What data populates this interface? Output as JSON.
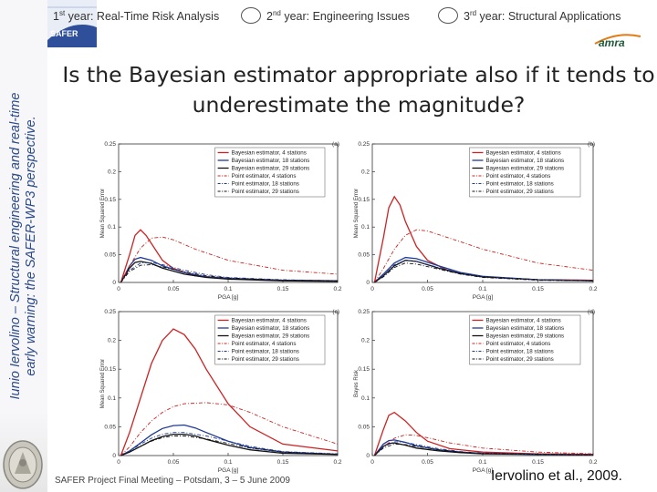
{
  "sidebar": {
    "line1": "Iunio Iervolino – Structural engineering and real-time",
    "line2": "early warning: the SAFER-WP3 perspective."
  },
  "logos": {
    "safer": "SAFER",
    "amra": "amra"
  },
  "nav": {
    "item1_num": "1",
    "item1_sup": "st",
    "item1_text": " year: Real-Time Risk Analysis",
    "item2_num": "2",
    "item2_sup": "nd",
    "item2_text": " year: Engineering Issues",
    "item3_num": "3",
    "item3_sup": "rd",
    "item3_text": " year: Structural Applications"
  },
  "title": "Is the Bayesian estimator appropriate also if it tends to underestimate the magnitude?",
  "footer": {
    "meeting": "SAFER Project Final Meeting – Potsdam, 3 – 5 June 2009",
    "citation": "Iervolino et al., 2009."
  },
  "colors": {
    "s4": "#cc2222",
    "s18": "#1f3a93",
    "s29": "#111111",
    "sidebar_text": "#2b4a8a"
  },
  "chart_data": [
    {
      "type": "line",
      "panel": "(a)",
      "xlabel": "PGA [g]",
      "ylabel": "Mean Squared Error",
      "xlim": [
        0,
        0.2
      ],
      "ylim": [
        0,
        0.25
      ],
      "xticks": [
        "0",
        "0.05",
        "0.1",
        "0.15",
        "0.2"
      ],
      "yticks": [
        "0",
        "0.05",
        "0.1",
        "0.15",
        "0.2",
        "0.25"
      ],
      "legend": "top-right",
      "series": [
        {
          "name": "Bayesian estimator, 4 stations",
          "style": "solid",
          "color": "#cc2222",
          "x": [
            0.002,
            0.01,
            0.015,
            0.02,
            0.025,
            0.03,
            0.04,
            0.05,
            0.07,
            0.1,
            0.15,
            0.2
          ],
          "y": [
            0.0,
            0.05,
            0.085,
            0.095,
            0.085,
            0.07,
            0.04,
            0.025,
            0.012,
            0.007,
            0.004,
            0.003
          ]
        },
        {
          "name": "Bayesian estimator, 18 stations",
          "style": "solid",
          "color": "#1f3a93",
          "x": [
            0.002,
            0.01,
            0.015,
            0.02,
            0.03,
            0.04,
            0.06,
            0.08,
            0.1,
            0.15,
            0.2
          ],
          "y": [
            0.0,
            0.03,
            0.042,
            0.045,
            0.04,
            0.03,
            0.018,
            0.01,
            0.007,
            0.004,
            0.003
          ]
        },
        {
          "name": "Bayesian estimator, 29 stations",
          "style": "solid",
          "color": "#111111",
          "x": [
            0.002,
            0.01,
            0.015,
            0.02,
            0.03,
            0.04,
            0.06,
            0.08,
            0.1,
            0.15,
            0.2
          ],
          "y": [
            0.0,
            0.026,
            0.036,
            0.038,
            0.034,
            0.026,
            0.015,
            0.009,
            0.006,
            0.003,
            0.002
          ]
        },
        {
          "name": "Point estimator, 4 stations",
          "style": "dashdot",
          "color": "#cc2222",
          "x": [
            0.002,
            0.01,
            0.02,
            0.03,
            0.04,
            0.05,
            0.07,
            0.1,
            0.15,
            0.2
          ],
          "y": [
            0.0,
            0.03,
            0.062,
            0.08,
            0.082,
            0.077,
            0.06,
            0.04,
            0.022,
            0.015
          ]
        },
        {
          "name": "Point estimator, 18 stations",
          "style": "dashdot",
          "color": "#1f3a93",
          "x": [
            0.002,
            0.01,
            0.02,
            0.03,
            0.04,
            0.06,
            0.08,
            0.1,
            0.15,
            0.2
          ],
          "y": [
            0.0,
            0.022,
            0.035,
            0.036,
            0.032,
            0.022,
            0.014,
            0.009,
            0.005,
            0.003
          ]
        },
        {
          "name": "Point estimator, 29 stations",
          "style": "dashdot",
          "color": "#111111",
          "x": [
            0.002,
            0.01,
            0.02,
            0.03,
            0.04,
            0.06,
            0.08,
            0.1,
            0.15,
            0.2
          ],
          "y": [
            0.0,
            0.02,
            0.031,
            0.032,
            0.028,
            0.019,
            0.012,
            0.008,
            0.004,
            0.003
          ]
        }
      ]
    },
    {
      "type": "line",
      "panel": "(b)",
      "xlabel": "PGA [g]",
      "ylabel": "Mean Squared Error",
      "xlim": [
        0,
        0.2
      ],
      "ylim": [
        0,
        0.25
      ],
      "xticks": [
        "0",
        "0.05",
        "0.1",
        "0.15",
        "0.2"
      ],
      "yticks": [
        "0",
        "0.05",
        "0.1",
        "0.15",
        "0.2",
        "0.25"
      ],
      "legend": "top-right",
      "series": [
        {
          "name": "Bayesian estimator, 4 stations",
          "style": "solid",
          "color": "#cc2222",
          "x": [
            0.002,
            0.01,
            0.015,
            0.02,
            0.025,
            0.03,
            0.04,
            0.05,
            0.07,
            0.1,
            0.15,
            0.2
          ],
          "y": [
            0.0,
            0.08,
            0.135,
            0.155,
            0.14,
            0.11,
            0.065,
            0.04,
            0.02,
            0.01,
            0.005,
            0.004
          ]
        },
        {
          "name": "Bayesian estimator, 18 stations",
          "style": "solid",
          "color": "#1f3a93",
          "x": [
            0.002,
            0.01,
            0.02,
            0.03,
            0.04,
            0.06,
            0.08,
            0.1,
            0.15,
            0.2
          ],
          "y": [
            0.0,
            0.015,
            0.035,
            0.045,
            0.043,
            0.03,
            0.018,
            0.011,
            0.005,
            0.003
          ]
        },
        {
          "name": "Bayesian estimator, 29 stations",
          "style": "solid",
          "color": "#111111",
          "x": [
            0.002,
            0.01,
            0.02,
            0.03,
            0.04,
            0.06,
            0.08,
            0.1,
            0.15,
            0.2
          ],
          "y": [
            0.0,
            0.012,
            0.03,
            0.04,
            0.038,
            0.026,
            0.016,
            0.01,
            0.005,
            0.003
          ]
        },
        {
          "name": "Point estimator, 4 stations",
          "style": "dashdot",
          "color": "#cc2222",
          "x": [
            0.002,
            0.01,
            0.02,
            0.03,
            0.04,
            0.05,
            0.07,
            0.1,
            0.15,
            0.2
          ],
          "y": [
            0.0,
            0.025,
            0.06,
            0.085,
            0.095,
            0.093,
            0.08,
            0.06,
            0.035,
            0.022
          ]
        },
        {
          "name": "Point estimator, 18 stations",
          "style": "dashdot",
          "color": "#1f3a93",
          "x": [
            0.002,
            0.01,
            0.02,
            0.03,
            0.04,
            0.06,
            0.08,
            0.1,
            0.15,
            0.2
          ],
          "y": [
            0.0,
            0.012,
            0.032,
            0.04,
            0.038,
            0.027,
            0.017,
            0.011,
            0.005,
            0.003
          ]
        },
        {
          "name": "Point estimator, 29 stations",
          "style": "dashdot",
          "color": "#111111",
          "x": [
            0.002,
            0.01,
            0.02,
            0.03,
            0.04,
            0.06,
            0.08,
            0.1,
            0.15,
            0.2
          ],
          "y": [
            0.0,
            0.01,
            0.027,
            0.035,
            0.033,
            0.024,
            0.015,
            0.009,
            0.004,
            0.003
          ]
        }
      ]
    },
    {
      "type": "line",
      "panel": "(c)",
      "xlabel": "PGA [g]",
      "ylabel": "Mean Squared Error",
      "xlim": [
        0,
        0.2
      ],
      "ylim": [
        0,
        0.25
      ],
      "xticks": [
        "0",
        "0.05",
        "0.1",
        "0.15",
        "0.2"
      ],
      "yticks": [
        "0",
        "0.05",
        "0.1",
        "0.15",
        "0.2",
        "0.25"
      ],
      "legend": "top-right",
      "series": [
        {
          "name": "Bayesian estimator, 4 stations",
          "style": "solid",
          "color": "#cc2222",
          "x": [
            0.002,
            0.01,
            0.02,
            0.03,
            0.04,
            0.05,
            0.06,
            0.07,
            0.08,
            0.1,
            0.12,
            0.15,
            0.2
          ],
          "y": [
            0.0,
            0.04,
            0.1,
            0.16,
            0.2,
            0.22,
            0.21,
            0.185,
            0.15,
            0.09,
            0.05,
            0.02,
            0.008
          ]
        },
        {
          "name": "Bayesian estimator, 18 stations",
          "style": "solid",
          "color": "#1f3a93",
          "x": [
            0.002,
            0.01,
            0.02,
            0.03,
            0.04,
            0.05,
            0.06,
            0.07,
            0.08,
            0.1,
            0.12,
            0.15,
            0.2
          ],
          "y": [
            0.0,
            0.008,
            0.022,
            0.036,
            0.047,
            0.052,
            0.053,
            0.048,
            0.04,
            0.025,
            0.014,
            0.006,
            0.002
          ]
        },
        {
          "name": "Bayesian estimator, 29 stations",
          "style": "solid",
          "color": "#111111",
          "x": [
            0.002,
            0.01,
            0.02,
            0.03,
            0.04,
            0.05,
            0.06,
            0.07,
            0.08,
            0.1,
            0.12,
            0.15,
            0.2
          ],
          "y": [
            0.0,
            0.006,
            0.016,
            0.026,
            0.033,
            0.037,
            0.037,
            0.034,
            0.028,
            0.018,
            0.01,
            0.004,
            0.002
          ]
        },
        {
          "name": "Point estimator, 4 stations",
          "style": "dashdot",
          "color": "#cc2222",
          "x": [
            0.002,
            0.01,
            0.02,
            0.03,
            0.04,
            0.05,
            0.06,
            0.08,
            0.1,
            0.12,
            0.15,
            0.2
          ],
          "y": [
            0.0,
            0.015,
            0.04,
            0.06,
            0.075,
            0.085,
            0.09,
            0.092,
            0.088,
            0.075,
            0.05,
            0.02
          ]
        },
        {
          "name": "Point estimator, 18 stations",
          "style": "dashdot",
          "color": "#1f3a93",
          "x": [
            0.002,
            0.01,
            0.02,
            0.03,
            0.04,
            0.05,
            0.06,
            0.08,
            0.1,
            0.12,
            0.15,
            0.2
          ],
          "y": [
            0.0,
            0.007,
            0.02,
            0.03,
            0.037,
            0.04,
            0.04,
            0.034,
            0.025,
            0.016,
            0.007,
            0.003
          ]
        },
        {
          "name": "Point estimator, 29 stations",
          "style": "dashdot",
          "color": "#111111",
          "x": [
            0.002,
            0.01,
            0.02,
            0.03,
            0.04,
            0.05,
            0.06,
            0.08,
            0.1,
            0.12,
            0.15,
            0.2
          ],
          "y": [
            0.0,
            0.006,
            0.016,
            0.025,
            0.031,
            0.034,
            0.034,
            0.029,
            0.021,
            0.013,
            0.006,
            0.002
          ]
        }
      ]
    },
    {
      "type": "line",
      "panel": "(d)",
      "xlabel": "PGA [g]",
      "ylabel": "Bayes Risk",
      "xlim": [
        0,
        0.2
      ],
      "ylim": [
        0,
        0.25
      ],
      "xticks": [
        "0",
        "0.05",
        "0.1",
        "0.15",
        "0.2"
      ],
      "yticks": [
        "0",
        "0.05",
        "0.1",
        "0.15",
        "0.2",
        "0.25"
      ],
      "legend": "top-right",
      "series": [
        {
          "name": "Bayesian estimator, 4 stations",
          "style": "solid",
          "color": "#cc2222",
          "x": [
            0.002,
            0.01,
            0.015,
            0.02,
            0.03,
            0.04,
            0.05,
            0.07,
            0.1,
            0.15,
            0.2
          ],
          "y": [
            0.0,
            0.045,
            0.07,
            0.075,
            0.06,
            0.04,
            0.025,
            0.012,
            0.006,
            0.003,
            0.002
          ]
        },
        {
          "name": "Bayesian estimator, 18 stations",
          "style": "solid",
          "color": "#1f3a93",
          "x": [
            0.002,
            0.01,
            0.015,
            0.02,
            0.03,
            0.04,
            0.06,
            0.08,
            0.1,
            0.15,
            0.2
          ],
          "y": [
            0.0,
            0.02,
            0.026,
            0.027,
            0.023,
            0.017,
            0.01,
            0.006,
            0.004,
            0.002,
            0.001
          ]
        },
        {
          "name": "Bayesian estimator, 29 stations",
          "style": "solid",
          "color": "#111111",
          "x": [
            0.002,
            0.01,
            0.015,
            0.02,
            0.03,
            0.04,
            0.06,
            0.08,
            0.1,
            0.15,
            0.2
          ],
          "y": [
            0.0,
            0.016,
            0.021,
            0.022,
            0.018,
            0.013,
            0.008,
            0.005,
            0.003,
            0.002,
            0.001
          ]
        },
        {
          "name": "Point estimator, 4 stations",
          "style": "dashdot",
          "color": "#cc2222",
          "x": [
            0.002,
            0.01,
            0.02,
            0.03,
            0.04,
            0.05,
            0.07,
            0.1,
            0.15,
            0.2
          ],
          "y": [
            0.0,
            0.015,
            0.03,
            0.036,
            0.035,
            0.031,
            0.022,
            0.013,
            0.006,
            0.003
          ]
        },
        {
          "name": "Point estimator, 18 stations",
          "style": "dashdot",
          "color": "#1f3a93",
          "x": [
            0.002,
            0.01,
            0.02,
            0.03,
            0.04,
            0.06,
            0.08,
            0.1,
            0.15,
            0.2
          ],
          "y": [
            0.0,
            0.015,
            0.024,
            0.023,
            0.019,
            0.012,
            0.007,
            0.004,
            0.002,
            0.001
          ]
        },
        {
          "name": "Point estimator, 29 stations",
          "style": "dashdot",
          "color": "#111111",
          "x": [
            0.002,
            0.01,
            0.02,
            0.03,
            0.04,
            0.06,
            0.08,
            0.1,
            0.15,
            0.2
          ],
          "y": [
            0.0,
            0.013,
            0.02,
            0.019,
            0.016,
            0.01,
            0.006,
            0.004,
            0.002,
            0.001
          ]
        }
      ]
    }
  ]
}
